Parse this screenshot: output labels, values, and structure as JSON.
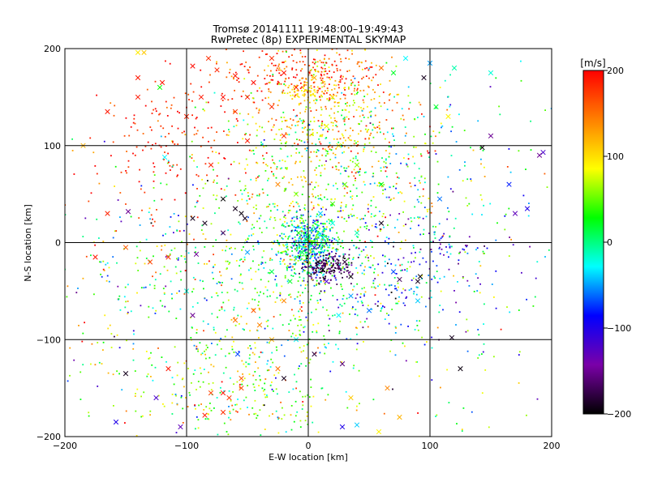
{
  "chart_data": {
    "type": "scatter",
    "title_line1": "Tromsø 20141111 19:48:00–19:49:43",
    "title_line2": "RwPretec (8p) EXPERIMENTAL SKYMAP",
    "xlabel": "E-W location [km]",
    "ylabel": "N-S location [km]",
    "xlim": [
      -200,
      200
    ],
    "ylim": [
      -200,
      200
    ],
    "xticks": [
      -200,
      -100,
      0,
      100,
      200
    ],
    "yticks": [
      -200,
      -100,
      0,
      100,
      200
    ],
    "grid": true,
    "colorbar": {
      "label": "[m/s]",
      "range": [
        -200,
        200
      ],
      "ticks": [
        200,
        100,
        0,
        -100,
        -200
      ],
      "colors": [
        "#000000",
        "#7a00a8",
        "#0000ff",
        "#00ffff",
        "#00ff00",
        "#ffff00",
        "#ff8000",
        "#ff0000"
      ]
    },
    "markers": {
      "small": "dot",
      "large": "x"
    },
    "series": [
      {
        "marker": "x",
        "points": [
          [
            -140,
            196,
            95
          ],
          [
            -135,
            196,
            110
          ],
          [
            -122,
            160,
            30
          ],
          [
            -140,
            170,
            190
          ],
          [
            -165,
            135,
            190
          ],
          [
            -95,
            182,
            195
          ],
          [
            -82,
            190,
            180
          ],
          [
            -75,
            178,
            185
          ],
          [
            -60,
            172,
            190
          ],
          [
            -45,
            165,
            195
          ],
          [
            -30,
            190,
            180
          ],
          [
            -20,
            175,
            190
          ],
          [
            -10,
            160,
            185
          ],
          [
            -50,
            150,
            190
          ],
          [
            -70,
            150,
            195
          ],
          [
            -88,
            150,
            190
          ],
          [
            -100,
            130,
            185
          ],
          [
            -120,
            165,
            190
          ],
          [
            -140,
            150,
            190
          ],
          [
            -60,
            135,
            175
          ],
          [
            -30,
            140,
            180
          ],
          [
            5,
            170,
            120
          ],
          [
            20,
            150,
            100
          ],
          [
            15,
            120,
            80
          ],
          [
            25,
            100,
            90
          ],
          [
            40,
            80,
            60
          ],
          [
            30,
            60,
            50
          ],
          [
            60,
            60,
            30
          ],
          [
            20,
            40,
            40
          ],
          [
            -10,
            50,
            60
          ],
          [
            -20,
            110,
            180
          ],
          [
            -50,
            105,
            190
          ],
          [
            -80,
            80,
            185
          ],
          [
            60,
            180,
            150
          ],
          [
            70,
            175,
            20
          ],
          [
            80,
            190,
            -30
          ],
          [
            100,
            185,
            -50
          ],
          [
            120,
            180,
            -10
          ],
          [
            150,
            175,
            -20
          ],
          [
            95,
            170,
            -190
          ],
          [
            150,
            110,
            -150
          ],
          [
            105,
            140,
            20
          ],
          [
            115,
            130,
            90
          ],
          [
            -118,
            88,
            -30
          ],
          [
            -148,
            32,
            -150
          ],
          [
            -95,
            25,
            -190
          ],
          [
            -92,
            -12,
            -150
          ],
          [
            -115,
            -15,
            180
          ],
          [
            -50,
            -10,
            -50
          ],
          [
            -30,
            -30,
            10
          ],
          [
            10,
            30,
            -40
          ],
          [
            20,
            20,
            -20
          ],
          [
            40,
            10,
            -10
          ],
          [
            60,
            20,
            -190
          ],
          [
            90,
            -40,
            -190
          ],
          [
            92,
            -35,
            -195
          ],
          [
            75,
            -38,
            -170
          ],
          [
            90,
            -60,
            -40
          ],
          [
            50,
            -70,
            -60
          ],
          [
            -52,
            25,
            -190
          ],
          [
            -55,
            30,
            -195
          ],
          [
            -60,
            35,
            -190
          ],
          [
            -70,
            45,
            -200
          ],
          [
            -85,
            20,
            -190
          ],
          [
            -70,
            10,
            -170
          ],
          [
            -100,
            -50,
            -20
          ],
          [
            -60,
            -80,
            150
          ],
          [
            -45,
            -70,
            160
          ],
          [
            -40,
            -85,
            140
          ],
          [
            -20,
            -60,
            140
          ],
          [
            -30,
            -100,
            120
          ],
          [
            -55,
            -150,
            170
          ],
          [
            -65,
            -160,
            175
          ],
          [
            -70,
            -175,
            180
          ],
          [
            -70,
            -155,
            190
          ],
          [
            -80,
            -155,
            170
          ],
          [
            -55,
            -140,
            160
          ],
          [
            -25,
            -130,
            150
          ],
          [
            -85,
            -178,
            190
          ],
          [
            -115,
            -130,
            190
          ],
          [
            -150,
            -135,
            -190
          ],
          [
            -125,
            -160,
            -120
          ],
          [
            -158,
            -185,
            -100
          ],
          [
            -105,
            -190,
            -130
          ],
          [
            -58,
            -115,
            -70
          ],
          [
            5,
            -115,
            -180
          ],
          [
            28,
            -125,
            -160
          ],
          [
            28,
            -190,
            -100
          ],
          [
            40,
            -188,
            -40
          ],
          [
            58,
            -195,
            90
          ],
          [
            75,
            -180,
            120
          ],
          [
            65,
            -150,
            140
          ],
          [
            35,
            -160,
            110
          ],
          [
            118,
            -98,
            -190
          ],
          [
            125,
            -130,
            -195
          ],
          [
            170,
            30,
            -130
          ],
          [
            180,
            35,
            -100
          ],
          [
            193,
            93,
            -120
          ],
          [
            190,
            90,
            -150
          ],
          [
            165,
            60,
            -80
          ],
          [
            108,
            45,
            -60
          ],
          [
            143,
            98,
            -200
          ],
          [
            -130,
            -20,
            170
          ],
          [
            -150,
            -5,
            160
          ],
          [
            -175,
            -15,
            190
          ],
          [
            -185,
            100,
            120
          ],
          [
            -165,
            30,
            185
          ],
          [
            -95,
            -75,
            -150
          ],
          [
            -20,
            -140,
            -190
          ],
          [
            -10,
            -100,
            -30
          ],
          [
            25,
            -75,
            -30
          ],
          [
            35,
            -55,
            -50
          ],
          [
            70,
            -30,
            -70
          ],
          [
            15,
            -40,
            -120
          ],
          [
            25,
            -25,
            -160
          ],
          [
            35,
            -35,
            -190
          ],
          [
            12,
            -28,
            -200
          ],
          [
            8,
            -20,
            -195
          ],
          [
            30,
            -20,
            -180
          ],
          [
            5,
            -5,
            -110
          ],
          [
            -15,
            -40,
            20
          ],
          [
            -25,
            60,
            140
          ],
          [
            -8,
            10,
            30
          ],
          [
            0,
            5,
            0
          ],
          [
            -5,
            -10,
            10
          ],
          [
            12,
            5,
            -20
          ]
        ]
      },
      {
        "marker": "dot",
        "generated": true,
        "clusters": [
          {
            "cx": 0,
            "cy": 0,
            "sx": 12,
            "sy": 15,
            "n": 520,
            "v": -20,
            "vs": 55
          },
          {
            "cx": 15,
            "cy": -25,
            "sx": 10,
            "sy": 8,
            "n": 180,
            "v": -175,
            "vs": 20
          },
          {
            "cx": 20,
            "cy": 130,
            "sx": 28,
            "sy": 38,
            "n": 380,
            "v": 120,
            "vs": 45
          },
          {
            "cx": -5,
            "cy": 175,
            "sx": 35,
            "sy": 18,
            "n": 240,
            "v": 175,
            "vs": 30
          },
          {
            "cx": -8,
            "cy": 70,
            "sx": 35,
            "sy": 45,
            "n": 350,
            "v": 60,
            "vs": 55
          },
          {
            "cx": -20,
            "cy": -50,
            "sx": 50,
            "sy": 40,
            "n": 380,
            "v": 30,
            "vs": 55
          },
          {
            "cx": -60,
            "cy": -150,
            "sx": 45,
            "sy": 35,
            "n": 320,
            "v": 50,
            "vs": 60
          },
          {
            "cx": -110,
            "cy": 110,
            "sx": 30,
            "sy": 30,
            "n": 150,
            "v": 185,
            "vs": 20
          },
          {
            "cx": -120,
            "cy": 10,
            "sx": 50,
            "sy": 50,
            "n": 180,
            "v": 40,
            "vs": 110
          },
          {
            "cx": 60,
            "cy": 60,
            "sx": 40,
            "sy": 60,
            "n": 250,
            "v": 40,
            "vs": 80
          },
          {
            "cx": 70,
            "cy": -30,
            "sx": 40,
            "sy": 35,
            "n": 200,
            "v": -70,
            "vs": 60
          },
          {
            "cx": 115,
            "cy": -5,
            "sx": 15,
            "sy": 8,
            "n": 30,
            "v": -110,
            "vs": 25
          },
          {
            "cx": -5,
            "cy": 155,
            "sx": 12,
            "sy": 4,
            "n": 50,
            "v": 95,
            "vs": 10
          },
          {
            "cx": 110,
            "cy": 50,
            "sx": 60,
            "sy": 70,
            "n": 180,
            "v": -10,
            "vs": 70
          },
          {
            "cx": -150,
            "cy": -80,
            "sx": 40,
            "sy": 50,
            "n": 110,
            "v": 30,
            "vs": 70
          },
          {
            "cx": 120,
            "cy": -120,
            "sx": 50,
            "sy": 50,
            "n": 60,
            "v": 0,
            "vs": 100
          }
        ]
      }
    ]
  }
}
